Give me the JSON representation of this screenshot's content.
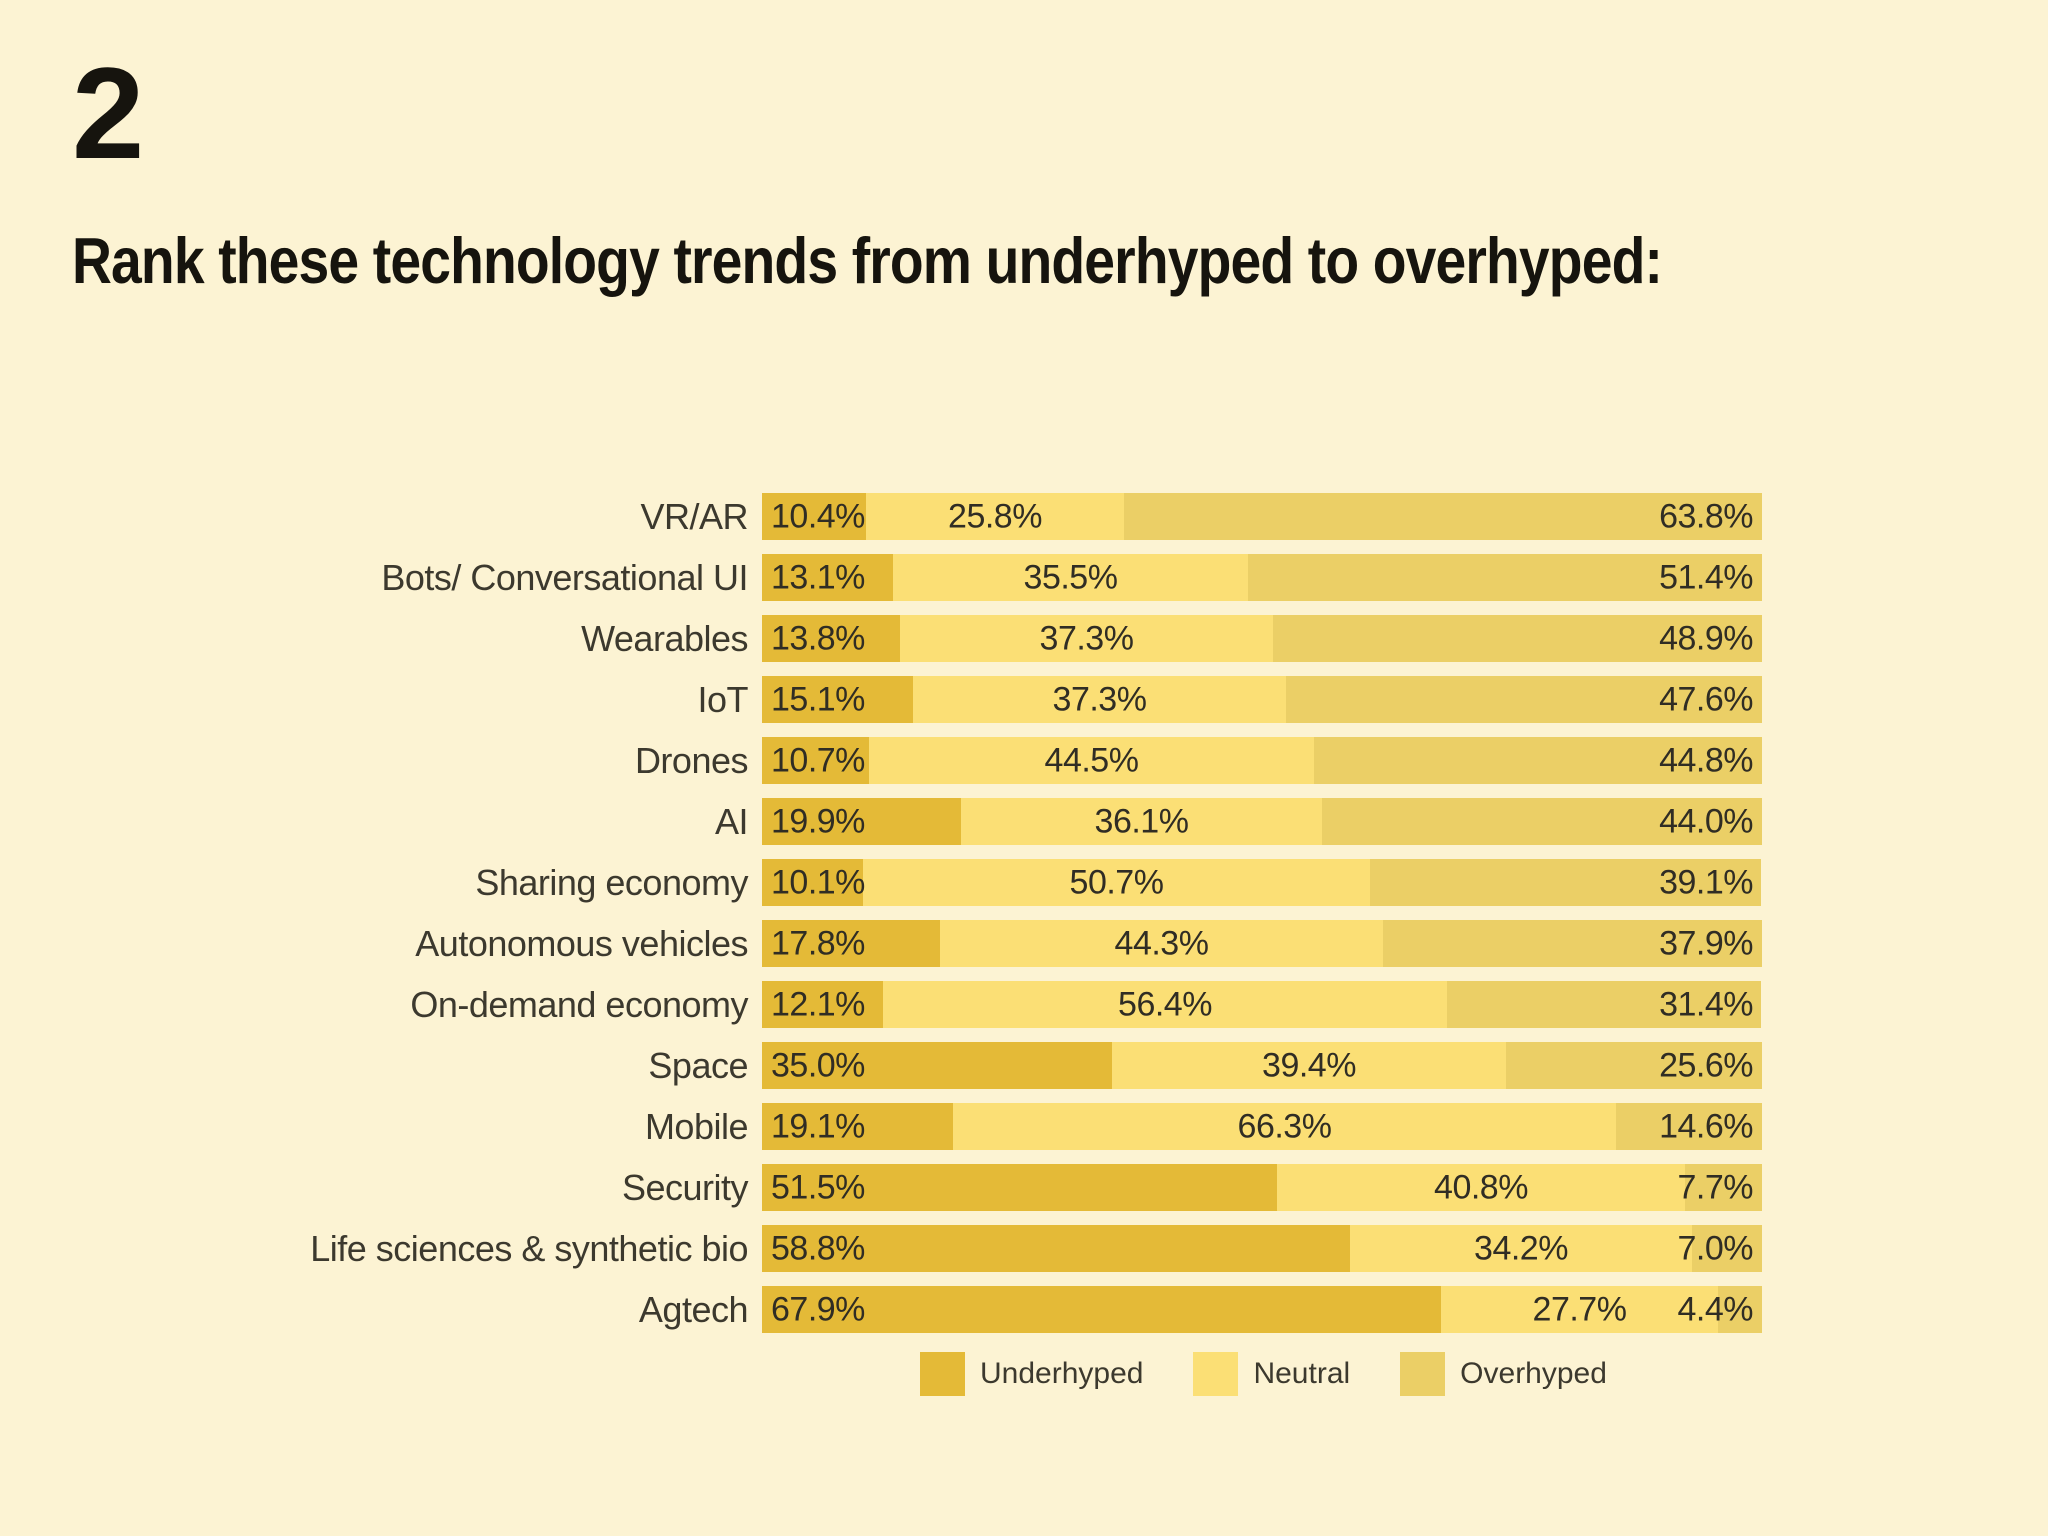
{
  "slide": {
    "number": "2",
    "title": "Rank these technology trends from underhyped to overhyped:",
    "background_color": "#fcf3d3"
  },
  "legend": {
    "items": [
      {
        "label": "Underhyped",
        "color": "#e4ba37"
      },
      {
        "label": "Neutral",
        "color": "#fbdf75"
      },
      {
        "label": "Overhyped",
        "color": "#ebcf66"
      }
    ]
  },
  "chart_data": {
    "type": "bar",
    "variant": "horizontal-stacked",
    "title": "Rank these technology trends from underhyped to overhyped:",
    "unit": "%",
    "xlim": [
      0,
      100
    ],
    "grid": false,
    "legend_position": "bottom",
    "value_label_format": "one-decimal-percent",
    "categories": [
      "VR/AR",
      "Bots/ Conversational UI",
      "Wearables",
      "IoT",
      "Drones",
      "AI",
      "Sharing economy",
      "Autonomous vehicles",
      "On-demand economy",
      "Space",
      "Mobile",
      "Security",
      "Life sciences & synthetic bio",
      "Agtech"
    ],
    "series": [
      {
        "name": "Underhyped",
        "color": "#e4ba37",
        "values": [
          10.4,
          13.1,
          13.8,
          15.1,
          10.7,
          19.9,
          10.1,
          17.8,
          12.1,
          35.0,
          19.1,
          51.5,
          58.8,
          67.9
        ]
      },
      {
        "name": "Neutral",
        "color": "#fbdf75",
        "values": [
          25.8,
          35.5,
          37.3,
          37.3,
          44.5,
          36.1,
          50.7,
          44.3,
          56.4,
          39.4,
          66.3,
          40.8,
          34.2,
          27.7
        ]
      },
      {
        "name": "Overhyped",
        "color": "#ebcf66",
        "values": [
          63.8,
          51.4,
          48.9,
          47.6,
          44.8,
          44.0,
          39.1,
          37.9,
          31.4,
          25.6,
          14.6,
          7.7,
          7.0,
          4.4
        ]
      }
    ]
  }
}
